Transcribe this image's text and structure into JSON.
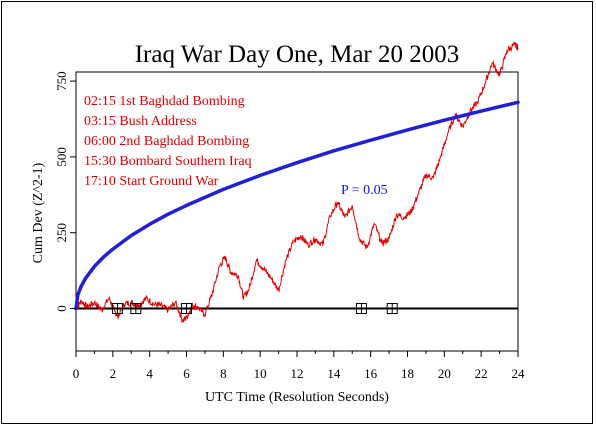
{
  "chart_data": {
    "type": "line",
    "title": "Iraq War Day One, Mar 20 2003",
    "xlabel": "UTC Time (Resolution Seconds)",
    "ylabel": "Cum Dev (Z^2-1)",
    "xlim": [
      0,
      24
    ],
    "ylim": [
      -140,
      780
    ],
    "x_ticks": [
      0,
      2,
      4,
      6,
      8,
      10,
      12,
      14,
      16,
      18,
      20,
      22,
      24
    ],
    "y_ticks": [
      0,
      250,
      500,
      750
    ],
    "annotations": [
      "02:15 1st Baghdad Bombing",
      "03:15 Bush Address",
      "06:00 2nd Baghdad Bombing",
      "15:30 Bombard Southern Iraq",
      "17:10 Start Ground War"
    ],
    "probability_label": "P = 0.05",
    "event_markers_x": [
      2.25,
      3.25,
      6.0,
      15.5,
      17.17
    ],
    "series": [
      {
        "name": "Cum Dev",
        "color": "#e00000",
        "x": [
          0,
          0.3,
          0.6,
          1.0,
          1.4,
          1.8,
          2.1,
          2.3,
          2.6,
          3.0,
          3.4,
          3.8,
          4.2,
          4.6,
          5.0,
          5.4,
          5.8,
          6.0,
          6.3,
          6.6,
          7.0,
          7.4,
          7.8,
          8.1,
          8.4,
          8.8,
          9.1,
          9.4,
          9.8,
          10.2,
          10.6,
          11.0,
          11.4,
          11.8,
          12.2,
          12.6,
          13.0,
          13.4,
          13.8,
          14.2,
          14.6,
          15.0,
          15.4,
          15.8,
          16.2,
          16.6,
          17.0,
          17.4,
          17.8,
          18.2,
          18.6,
          19.0,
          19.4,
          19.8,
          20.2,
          20.6,
          21.0,
          21.4,
          21.8,
          22.2,
          22.6,
          23.0,
          23.4,
          23.8,
          24.0
        ],
        "values": [
          0,
          25,
          5,
          20,
          -5,
          35,
          -10,
          -25,
          15,
          20,
          10,
          35,
          15,
          10,
          -5,
          20,
          -40,
          -30,
          10,
          5,
          -20,
          50,
          140,
          170,
          120,
          110,
          35,
          65,
          160,
          130,
          100,
          60,
          160,
          220,
          240,
          210,
          230,
          210,
          305,
          350,
          300,
          340,
          230,
          200,
          280,
          215,
          230,
          310,
          300,
          320,
          380,
          440,
          430,
          500,
          580,
          640,
          600,
          650,
          680,
          740,
          810,
          770,
          850,
          870,
          860
        ]
      },
      {
        "name": "P = 0.05",
        "color": "#2020d8",
        "x": [
          0,
          0.1,
          0.25,
          0.5,
          1,
          1.5,
          2,
          3,
          4,
          5,
          6,
          8,
          10,
          12,
          14,
          16,
          18,
          20,
          22,
          24
        ],
        "values": [
          0,
          44,
          69,
          98,
          139,
          170,
          196,
          241,
          278,
          311,
          340,
          393,
          439,
          481,
          520,
          555,
          589,
          621,
          651,
          680
        ]
      }
    ],
    "zero_line": 0,
    "grid": false
  }
}
